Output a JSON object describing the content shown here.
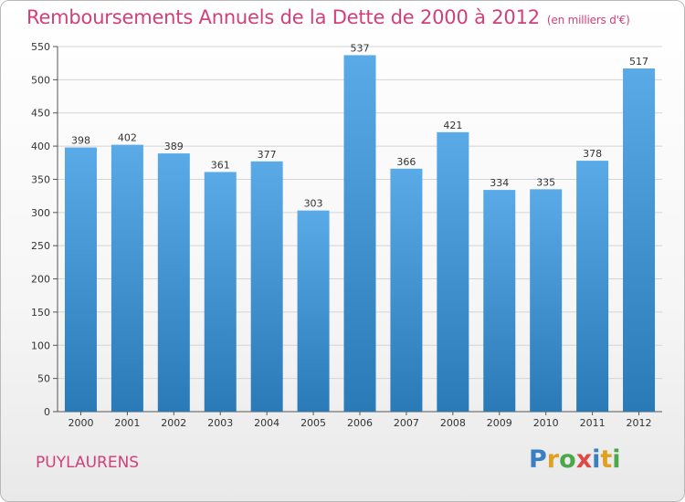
{
  "header": {
    "title": "Remboursements Annuels de la Dette de 2000 à 2012",
    "subtitle": "(en milliers d'€)"
  },
  "footer": {
    "place": "PUYLAURENS",
    "logo": "Proxiti",
    "logo_colors": [
      "#3a7fc1",
      "#e0a020",
      "#4aa84a",
      "#e04848",
      "#3a7fc1",
      "#e0a020",
      "#4aa84a"
    ]
  },
  "chart_data": {
    "type": "bar",
    "title": "Remboursements Annuels de la Dette de 2000 à 2012",
    "subtitle": "(en milliers d'€)",
    "categories": [
      "2000",
      "2001",
      "2002",
      "2003",
      "2004",
      "2005",
      "2006",
      "2007",
      "2008",
      "2009",
      "2010",
      "2011",
      "2012"
    ],
    "values": [
      398,
      402,
      389,
      361,
      377,
      303,
      537,
      366,
      421,
      334,
      335,
      378,
      517
    ],
    "ylim": [
      0,
      550
    ],
    "yticks": [
      0,
      50,
      100,
      150,
      200,
      250,
      300,
      350,
      400,
      450,
      500,
      550
    ],
    "grid": true,
    "bar_color_top": "#5aaae8",
    "bar_color_bottom": "#2a7ab8",
    "grid_color": "#d4d4d4"
  }
}
